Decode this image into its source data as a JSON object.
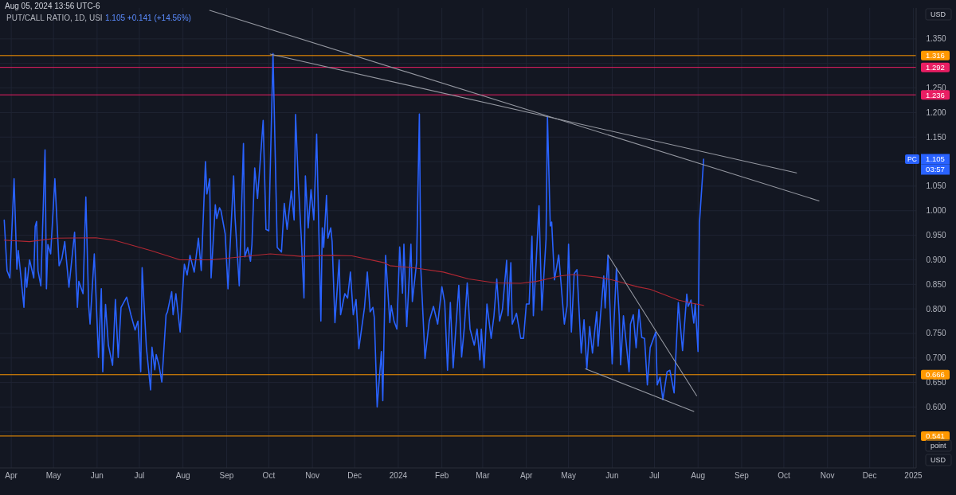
{
  "chart_data": {
    "type": "line",
    "title": "PUT/CALL RATIO, 1D, USI",
    "subtitle": "Aug 05, 2024 13:56 UTC-6",
    "xlim": [
      "2023-03-24",
      "2025-01-03"
    ],
    "xticks": [
      {
        "value": "2023-04-01",
        "label": "Apr"
      },
      {
        "value": "2023-05-01",
        "label": "May"
      },
      {
        "value": "2023-06-01",
        "label": "Jun"
      },
      {
        "value": "2023-07-01",
        "label": "Jul"
      },
      {
        "value": "2023-08-01",
        "label": "Aug"
      },
      {
        "value": "2023-09-01",
        "label": "Sep"
      },
      {
        "value": "2023-10-01",
        "label": "Oct"
      },
      {
        "value": "2023-11-01",
        "label": "Nov"
      },
      {
        "value": "2023-12-01",
        "label": "Dec"
      },
      {
        "value": "2024-01-01",
        "label": "2024"
      },
      {
        "value": "2024-02-01",
        "label": "Feb"
      },
      {
        "value": "2024-03-01",
        "label": "Mar"
      },
      {
        "value": "2024-04-01",
        "label": "Apr"
      },
      {
        "value": "2024-05-01",
        "label": "May"
      },
      {
        "value": "2024-06-01",
        "label": "Jun"
      },
      {
        "value": "2024-07-01",
        "label": "Jul"
      },
      {
        "value": "2024-08-01",
        "label": "Aug"
      },
      {
        "value": "2024-09-01",
        "label": "Sep"
      },
      {
        "value": "2024-10-01",
        "label": "Oct"
      },
      {
        "value": "2024-11-01",
        "label": "Nov"
      },
      {
        "value": "2024-12-01",
        "label": "Dec"
      },
      {
        "value": "2025-01-01",
        "label": "2025"
      }
    ],
    "ylim": [
      0.476,
      1.413
    ],
    "yticks": [
      {
        "value": 0.55,
        "label": null
      },
      {
        "value": 0.6,
        "label": "0.600"
      },
      {
        "value": 0.65,
        "label": "0.650"
      },
      {
        "value": 0.7,
        "label": "0.700"
      },
      {
        "value": 0.75,
        "label": "0.750"
      },
      {
        "value": 0.8,
        "label": "0.800"
      },
      {
        "value": 0.85,
        "label": "0.850"
      },
      {
        "value": 0.9,
        "label": "0.900"
      },
      {
        "value": 0.95,
        "label": "0.950"
      },
      {
        "value": 1.0,
        "label": "1.000"
      },
      {
        "value": 1.05,
        "label": "1.050"
      },
      {
        "value": 1.1,
        "label": null
      },
      {
        "value": 1.15,
        "label": "1.150"
      },
      {
        "value": 1.2,
        "label": "1.200"
      },
      {
        "value": 1.25,
        "label": "1.250"
      },
      {
        "value": 1.3,
        "label": null
      },
      {
        "value": 1.35,
        "label": "1.350"
      }
    ],
    "grid": true,
    "series": [
      {
        "color": "#2962ff",
        "x": [
          "2023-03-27",
          "2023-03-29",
          "2023-03-31",
          "2023-04-03",
          "2023-04-05",
          "2023-04-06",
          "2023-04-10",
          "2023-04-11",
          "2023-04-12",
          "2023-04-14",
          "2023-04-17",
          "2023-04-18",
          "2023-04-19",
          "2023-04-20",
          "2023-04-22",
          "2023-04-25",
          "2023-04-26",
          "2023-04-27",
          "2023-04-29",
          "2023-05-02",
          "2023-05-05",
          "2023-05-07",
          "2023-05-09",
          "2023-05-12",
          "2023-05-16",
          "2023-05-18",
          "2023-05-19",
          "2023-05-22",
          "2023-05-24",
          "2023-05-26",
          "2023-05-27",
          "2023-05-30",
          "2023-06-02",
          "2023-06-04",
          "2023-06-05",
          "2023-06-07",
          "2023-06-09",
          "2023-06-12",
          "2023-06-14",
          "2023-06-16",
          "2023-06-18",
          "2023-06-22",
          "2023-06-25",
          "2023-06-28",
          "2023-06-30",
          "2023-07-02",
          "2023-07-03",
          "2023-07-06",
          "2023-07-09",
          "2023-07-10",
          "2023-07-12",
          "2023-07-13",
          "2023-07-15",
          "2023-07-17",
          "2023-07-20",
          "2023-07-21",
          "2023-07-24",
          "2023-07-25",
          "2023-07-27",
          "2023-07-30",
          "2023-08-02",
          "2023-08-04",
          "2023-08-06",
          "2023-08-09",
          "2023-08-12",
          "2023-08-14",
          "2023-08-17",
          "2023-08-18",
          "2023-08-20",
          "2023-08-21",
          "2023-08-24",
          "2023-08-25",
          "2023-08-27",
          "2023-08-28",
          "2023-08-31",
          "2023-09-02",
          "2023-09-04",
          "2023-09-06",
          "2023-09-07",
          "2023-09-10",
          "2023-09-13",
          "2023-09-14",
          "2023-09-16",
          "2023-09-18",
          "2023-09-19",
          "2023-09-21",
          "2023-09-23",
          "2023-09-27",
          "2023-09-29",
          "2023-10-01",
          "2023-10-04",
          "2023-10-07",
          "2023-10-10",
          "2023-10-12",
          "2023-10-14",
          "2023-10-17",
          "2023-10-19",
          "2023-10-20",
          "2023-10-22",
          "2023-10-24",
          "2023-10-26",
          "2023-10-27",
          "2023-10-29",
          "2023-10-31",
          "2023-11-02",
          "2023-11-04",
          "2023-11-07",
          "2023-11-08",
          "2023-11-09",
          "2023-11-11",
          "2023-11-12",
          "2023-11-14",
          "2023-11-15",
          "2023-11-17",
          "2023-11-20",
          "2023-11-21",
          "2023-11-24",
          "2023-11-26",
          "2023-11-28",
          "2023-11-30",
          "2023-12-02",
          "2023-12-04",
          "2023-12-08",
          "2023-12-10",
          "2023-12-12",
          "2023-12-14",
          "2023-12-15",
          "2023-12-17",
          "2023-12-20",
          "2023-12-21",
          "2023-12-23",
          "2023-12-26",
          "2023-12-27",
          "2023-12-29",
          "2023-12-31",
          "2024-01-02",
          "2024-01-04",
          "2024-01-05",
          "2024-01-07",
          "2024-01-10",
          "2024-01-11",
          "2024-01-14",
          "2024-01-16",
          "2024-01-17",
          "2024-01-20",
          "2024-01-23",
          "2024-01-26",
          "2024-01-29",
          "2024-02-01",
          "2024-02-03",
          "2024-02-05",
          "2024-02-07",
          "2024-02-09",
          "2024-02-13",
          "2024-02-15",
          "2024-02-17",
          "2024-02-19",
          "2024-02-21",
          "2024-02-24",
          "2024-02-26",
          "2024-02-28",
          "2024-02-29",
          "2024-03-02",
          "2024-03-04",
          "2024-03-07",
          "2024-03-09",
          "2024-03-11",
          "2024-03-13",
          "2024-03-15",
          "2024-03-18",
          "2024-03-19",
          "2024-03-21",
          "2024-03-22",
          "2024-03-25",
          "2024-03-28",
          "2024-03-30",
          "2024-04-01",
          "2024-04-03",
          "2024-04-05",
          "2024-04-06",
          "2024-04-10",
          "2024-04-12",
          "2024-04-15",
          "2024-04-16",
          "2024-04-18",
          "2024-04-19",
          "2024-04-21",
          "2024-04-24",
          "2024-04-28",
          "2024-04-30",
          "2024-05-01",
          "2024-05-03",
          "2024-05-05",
          "2024-05-07",
          "2024-05-10",
          "2024-05-12",
          "2024-05-14",
          "2024-05-16",
          "2024-05-18",
          "2024-05-21",
          "2024-05-22",
          "2024-05-24",
          "2024-05-26",
          "2024-05-27",
          "2024-05-29",
          "2024-06-01",
          "2024-06-04",
          "2024-06-06",
          "2024-06-07",
          "2024-06-09",
          "2024-06-13",
          "2024-06-14",
          "2024-06-16",
          "2024-06-18",
          "2024-06-20",
          "2024-06-22",
          "2024-06-24",
          "2024-06-26",
          "2024-06-28",
          "2024-07-02",
          "2024-07-03",
          "2024-07-05",
          "2024-07-07",
          "2024-07-10",
          "2024-07-12",
          "2024-07-15",
          "2024-07-18",
          "2024-07-21",
          "2024-07-24",
          "2024-07-25",
          "2024-07-27",
          "2024-07-29",
          "2024-07-30",
          "2024-08-01",
          "2024-08-02",
          "2024-08-05"
        ],
        "values": [
          0.981,
          0.878,
          0.863,
          1.065,
          0.881,
          0.919,
          0.803,
          0.884,
          0.844,
          0.9,
          0.863,
          0.968,
          0.978,
          0.878,
          0.847,
          1.124,
          0.841,
          0.931,
          0.912,
          1.065,
          0.888,
          0.903,
          0.937,
          0.844,
          0.956,
          0.803,
          0.856,
          0.831,
          1.028,
          0.807,
          0.769,
          0.912,
          0.701,
          0.841,
          0.672,
          0.809,
          0.726,
          0.685,
          0.819,
          0.701,
          0.803,
          0.824,
          0.788,
          0.757,
          0.775,
          0.672,
          0.884,
          0.722,
          0.635,
          0.722,
          0.676,
          0.707,
          0.685,
          0.651,
          0.788,
          0.794,
          0.835,
          0.788,
          0.831,
          0.753,
          0.891,
          0.869,
          0.909,
          0.875,
          0.944,
          0.878,
          1.1,
          1.034,
          1.065,
          0.863,
          1.012,
          0.984,
          1.006,
          1.0,
          0.953,
          0.841,
          0.956,
          1.071,
          0.987,
          0.847,
          1.137,
          0.906,
          0.925,
          0.897,
          0.931,
          1.087,
          1.025,
          1.184,
          0.962,
          0.959,
          1.32,
          0.925,
          0.916,
          1.015,
          0.962,
          1.04,
          0.981,
          1.196,
          1.056,
          0.95,
          0.822,
          1.071,
          0.965,
          1.043,
          0.981,
          1.156,
          0.775,
          0.965,
          0.925,
          1.031,
          0.944,
          0.965,
          0.937,
          0.772,
          0.9,
          0.788,
          0.831,
          0.822,
          0.875,
          0.788,
          0.819,
          0.719,
          0.803,
          0.875,
          0.794,
          0.803,
          0.782,
          0.6,
          0.713,
          0.613,
          0.909,
          0.772,
          0.807,
          0.775,
          0.759,
          0.926,
          0.832,
          0.932,
          0.764,
          0.932,
          0.815,
          0.894,
          1.197,
          0.883,
          0.699,
          0.775,
          0.805,
          0.769,
          0.845,
          0.813,
          0.675,
          0.813,
          0.68,
          0.848,
          0.702,
          0.764,
          0.853,
          0.759,
          0.726,
          0.759,
          0.696,
          0.759,
          0.68,
          0.81,
          0.74,
          0.786,
          0.861,
          0.775,
          0.799,
          0.899,
          0.786,
          0.894,
          0.769,
          0.791,
          0.74,
          0.74,
          0.81,
          0.81,
          0.948,
          0.786,
          1.01,
          0.797,
          0.942,
          1.192,
          0.969,
          0.977,
          0.859,
          0.91,
          0.769,
          0.807,
          0.932,
          0.753,
          0.872,
          0.88,
          0.71,
          0.778,
          0.678,
          0.764,
          0.71,
          0.794,
          0.724,
          0.797,
          0.867,
          0.802,
          0.909,
          0.688,
          0.883,
          0.786,
          0.686,
          0.786,
          0.672,
          0.769,
          0.788,
          0.721,
          0.799,
          0.742,
          0.74,
          0.645,
          0.721,
          0.753,
          0.645,
          0.661,
          0.615,
          0.672,
          0.675,
          0.629,
          0.813,
          0.715,
          0.83,
          0.805,
          0.818,
          0.771,
          0.81,
          0.713,
          0.975,
          1.105
        ]
      },
      {
        "color": "#b22833",
        "x": [
          "2023-03-27",
          "2023-04-14",
          "2023-05-03",
          "2023-05-31",
          "2023-06-13",
          "2023-07-09",
          "2023-07-30",
          "2023-08-21",
          "2023-09-11",
          "2023-10-02",
          "2023-10-24",
          "2023-11-14",
          "2023-11-29",
          "2023-12-22",
          "2023-12-26",
          "2024-01-14",
          "2024-02-02",
          "2024-02-20",
          "2024-03-10",
          "2024-03-28",
          "2024-04-08",
          "2024-04-16",
          "2024-04-25",
          "2024-05-04",
          "2024-05-14",
          "2024-05-23",
          "2024-06-01",
          "2024-06-10",
          "2024-06-19",
          "2024-06-28",
          "2024-07-08",
          "2024-07-18",
          "2024-07-27",
          "2024-08-05"
        ],
        "values": [
          0.94,
          0.937,
          0.944,
          0.945,
          0.94,
          0.919,
          0.9,
          0.9,
          0.906,
          0.912,
          0.907,
          0.909,
          0.908,
          0.894,
          0.888,
          0.883,
          0.875,
          0.861,
          0.853,
          0.852,
          0.856,
          0.861,
          0.867,
          0.87,
          0.867,
          0.864,
          0.859,
          0.852,
          0.845,
          0.84,
          0.829,
          0.818,
          0.812,
          0.807
        ]
      },
      {
        "color": "#9598a1",
        "x": [
          "2023-08-20",
          "2024-10-26"
        ],
        "values": [
          1.408,
          1.02
        ]
      },
      {
        "color": "#9598a1",
        "x": [
          "2023-10-02",
          "2024-10-10"
        ],
        "values": [
          1.319,
          1.077
        ]
      },
      {
        "color": "#9598a1",
        "x": [
          "2024-05-29",
          "2024-07-31"
        ],
        "values": [
          0.91,
          0.623
        ]
      },
      {
        "color": "#9598a1",
        "x": [
          "2024-05-13",
          "2024-07-29"
        ],
        "values": [
          0.678,
          0.591
        ]
      }
    ],
    "ref_lines": [
      {
        "axis": "y",
        "value": 1.316,
        "label": "1.316",
        "color": "#ff9800"
      },
      {
        "axis": "y",
        "value": 1.292,
        "label": "1.292",
        "color": "#e91e63"
      },
      {
        "axis": "y",
        "value": 1.236,
        "label": "1.236",
        "color": "#e91e63"
      },
      {
        "axis": "y",
        "value": 0.666,
        "label": "0.666",
        "color": "#ff9800"
      },
      {
        "axis": "y",
        "value": 0.541,
        "label": "0.541",
        "color": "#ff9800"
      }
    ],
    "annotations": [
      "1.105 +0.141 (+14.56%)",
      "USD",
      "point",
      "USD",
      "PC",
      "1.105",
      "03:57"
    ]
  }
}
